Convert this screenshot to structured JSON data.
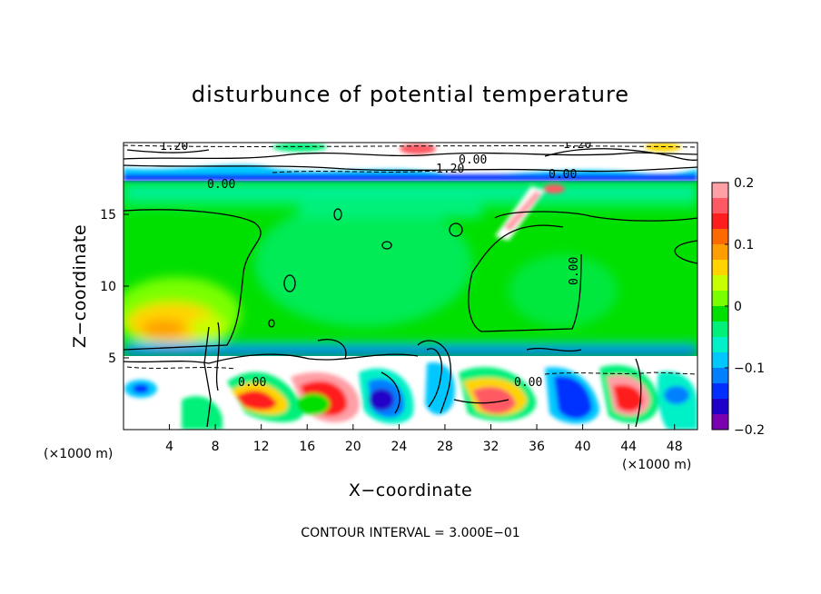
{
  "chart_data": {
    "type": "heatmap",
    "title": "disturbunce of potential temperature",
    "xlabel": "X−coordinate",
    "ylabel": "Z−coordinate",
    "xunit": "(×1000 m)",
    "yunit": "(×1000 m)",
    "xlim": [
      0,
      50
    ],
    "ylim": [
      0,
      20
    ],
    "x_ticks": [
      "4",
      "8",
      "12",
      "16",
      "20",
      "24",
      "28",
      "32",
      "36",
      "40",
      "44",
      "48"
    ],
    "y_ticks": [
      "5",
      "10",
      "15"
    ],
    "colorbar": {
      "min": -0.2,
      "max": 0.2,
      "tick_labels": [
        "0.2",
        "0.1",
        "0",
        "−0.1",
        "−0.2"
      ],
      "colors": [
        "#ff9fa6",
        "#ff5a64",
        "#ff1e1e",
        "#ff6a00",
        "#ff9e00",
        "#ffd400",
        "#c8ff00",
        "#7aff00",
        "#00e000",
        "#00f07a",
        "#00f0c8",
        "#00c8ff",
        "#0080ff",
        "#0030ff",
        "#2000c8",
        "#7a00b0"
      ]
    },
    "contour_interval": "CONTOUR INTERVAL = 3.000E−01",
    "contour_labels": [
      "0.00",
      "0.00",
      "0.00",
      "0.00",
      "1.20",
      "1.20",
      "0.00",
      "1.20"
    ]
  }
}
